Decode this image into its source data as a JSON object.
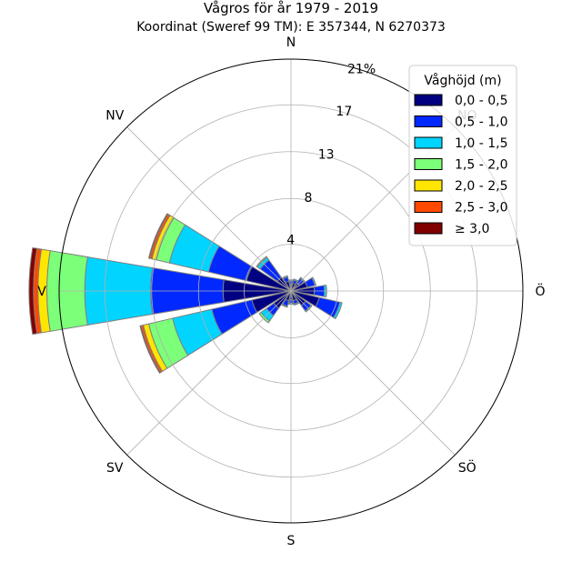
{
  "chart_data": {
    "type": "windrose",
    "title": "Vågros för år 1979 - 2019",
    "subtitle": "Koordinat (Sweref 99 TM): E 357344, N 6270373",
    "directions": [
      "N",
      "NO",
      "Ö",
      "SÖ",
      "S",
      "SV",
      "V",
      "NV"
    ],
    "radial_ticks": [
      "4",
      "8",
      "13",
      "17",
      "21%"
    ],
    "radial_values": [
      4.2,
      8.3,
      12.5,
      16.7,
      20.8
    ],
    "rmax": 20.8,
    "grid": true,
    "legend": {
      "title": "Våghöjd (m)",
      "position": "top-right",
      "labels": [
        "0,0 - 0,5",
        "0,5 - 1,0",
        "1,0 - 1,5",
        "1,5 - 2,0",
        "2,0 - 2,5",
        "2,5 - 3,0",
        "≥ 3,0"
      ],
      "colors": [
        "#000080",
        "#0028ff",
        "#00d4ff",
        "#7cff79",
        "#ffe600",
        "#ff4a00",
        "#800000"
      ]
    },
    "sectors": [
      {
        "dir_deg": 0,
        "values": [
          0.6,
          0.3,
          0.1,
          0,
          0,
          0,
          0
        ]
      },
      {
        "dir_deg": 22.5,
        "values": [
          0.7,
          0.3,
          0.1,
          0,
          0,
          0,
          0
        ]
      },
      {
        "dir_deg": 45,
        "values": [
          0.9,
          0.5,
          0.1,
          0,
          0,
          0,
          0
        ]
      },
      {
        "dir_deg": 67.5,
        "values": [
          1.5,
          0.7,
          0.1,
          0,
          0,
          0,
          0
        ]
      },
      {
        "dir_deg": 90,
        "values": [
          2.1,
          0.9,
          0.2,
          0,
          0,
          0,
          0
        ]
      },
      {
        "dir_deg": 112.5,
        "values": [
          2.6,
          1.9,
          0.2,
          0,
          0,
          0,
          0
        ]
      },
      {
        "dir_deg": 135,
        "values": [
          1.6,
          0.6,
          0.1,
          0,
          0,
          0,
          0
        ]
      },
      {
        "dir_deg": 157.5,
        "values": [
          0.9,
          0.3,
          0.1,
          0,
          0,
          0,
          0
        ]
      },
      {
        "dir_deg": 180,
        "values": [
          0.8,
          0.3,
          0.1,
          0,
          0,
          0,
          0
        ]
      },
      {
        "dir_deg": 202.5,
        "values": [
          0.9,
          0.5,
          0.1,
          0,
          0,
          0,
          0
        ]
      },
      {
        "dir_deg": 225,
        "values": [
          1.9,
          0.8,
          0.6,
          0.2,
          0,
          0,
          0
        ]
      },
      {
        "dir_deg": 247.5,
        "values": [
          3.6,
          3.7,
          3.6,
          2.2,
          0.5,
          0.2,
          0.1
        ]
      },
      {
        "dir_deg": 270,
        "values": [
          6.1,
          6.5,
          5.9,
          3.4,
          0.8,
          0.4,
          0.4
        ]
      },
      {
        "dir_deg": 292.5,
        "values": [
          4.1,
          3.5,
          3.6,
          1.2,
          0.4,
          0.2,
          0.1
        ]
      },
      {
        "dir_deg": 315,
        "values": [
          1.5,
          1.9,
          0.3,
          0.1,
          0,
          0,
          0
        ]
      },
      {
        "dir_deg": 337.5,
        "values": [
          0.9,
          0.4,
          0.1,
          0,
          0,
          0,
          0
        ]
      }
    ]
  }
}
